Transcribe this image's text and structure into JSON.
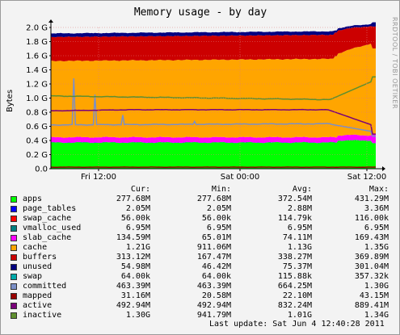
{
  "chart_data": {
    "type": "area",
    "title": "Memory usage - by day",
    "ylabel": "Bytes",
    "ylim": [
      0,
      2.0
    ],
    "y_unit": "G",
    "y_ticks": [
      "0.0",
      "0.2 G",
      "0.4 G",
      "0.6 G",
      "0.8 G",
      "1.0 G",
      "1.2 G",
      "1.4 G",
      "1.6 G",
      "1.8 G",
      "2.0 G"
    ],
    "x_ticks": [
      "Fri 12:00",
      "Sat 00:00",
      "Sat 12:00"
    ],
    "grid": true,
    "watermark": "RRDTOOL / TOBI OETIKER",
    "stack_order": [
      "apps",
      "page_tables",
      "swap_cache",
      "slab_cache",
      "cache",
      "buffers",
      "unused"
    ],
    "stacked_avg_gb": {
      "apps": 0.372,
      "page_tables": 0.003,
      "swap_cache": 0.0001,
      "slab_cache": 0.074,
      "cache": 1.13,
      "buffers": 0.338,
      "unused": 0.075
    },
    "line_series": [
      "committed",
      "mapped",
      "active",
      "inactive"
    ],
    "columns": [
      "Cur:",
      "Min:",
      "Avg:",
      "Max:"
    ],
    "series": [
      {
        "name": "apps",
        "color": "#00ff00",
        "cur": "277.68M",
        "min": "277.68M",
        "avg": "372.54M",
        "max": "431.29M"
      },
      {
        "name": "page_tables",
        "color": "#0000ff",
        "cur": "2.05M",
        "min": "2.05M",
        "avg": "2.88M",
        "max": "3.36M"
      },
      {
        "name": "swap_cache",
        "color": "#ff0000",
        "cur": "56.00k",
        "min": "56.00k",
        "avg": "114.79k",
        "max": "116.00k"
      },
      {
        "name": "vmalloc_used",
        "color": "#008080",
        "cur": "6.95M",
        "min": "6.95M",
        "avg": "6.95M",
        "max": "6.95M"
      },
      {
        "name": "slab_cache",
        "color": "#ff00ff",
        "cur": "134.59M",
        "min": "65.01M",
        "avg": "74.11M",
        "max": "169.43M"
      },
      {
        "name": "cache",
        "color": "#ffa500",
        "cur": "1.21G",
        "min": "911.06M",
        "avg": "1.13G",
        "max": "1.35G"
      },
      {
        "name": "buffers",
        "color": "#cc0000",
        "cur": "313.12M",
        "min": "167.47M",
        "avg": "338.27M",
        "max": "369.89M"
      },
      {
        "name": "unused",
        "color": "#000080",
        "cur": "54.98M",
        "min": "46.42M",
        "avg": "75.37M",
        "max": "301.04M"
      },
      {
        "name": "swap",
        "color": "#00aaaa",
        "cur": "64.00k",
        "min": "64.00k",
        "avg": "115.88k",
        "max": "357.32k"
      },
      {
        "name": "committed",
        "color": "#7b8fc7",
        "cur": "463.39M",
        "min": "463.39M",
        "avg": "664.25M",
        "max": "1.30G"
      },
      {
        "name": "mapped",
        "color": "#990000",
        "cur": "31.16M",
        "min": "20.58M",
        "avg": "22.10M",
        "max": "43.15M"
      },
      {
        "name": "active",
        "color": "#7a007a",
        "cur": "492.94M",
        "min": "492.94M",
        "avg": "832.24M",
        "max": "889.41M"
      },
      {
        "name": "inactive",
        "color": "#5f8f2f",
        "cur": "1.30G",
        "min": "941.79M",
        "avg": "1.01G",
        "max": "1.34G"
      }
    ],
    "last_update": "Last update: Sat Jun  4 12:40:28 2011"
  }
}
